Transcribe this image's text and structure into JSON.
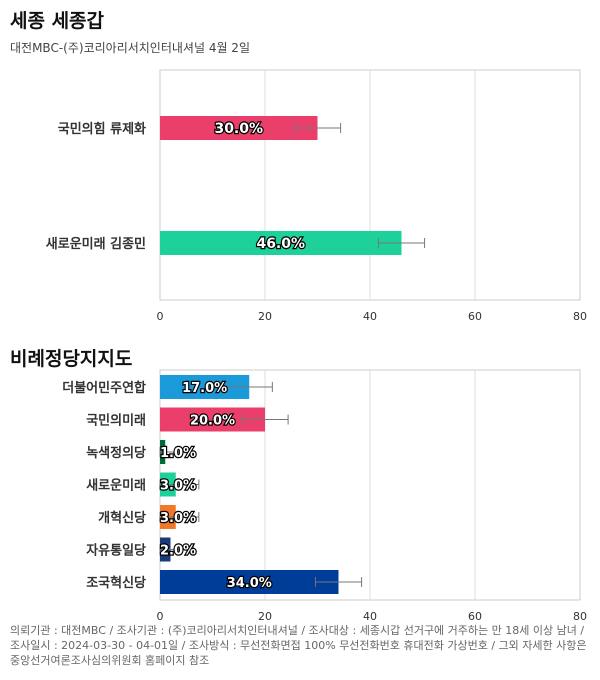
{
  "header": {
    "title": "세종 세종갑",
    "subtitle": "대전MBC-(주)코리아리서치인터내셔널 4월 2일"
  },
  "section2": {
    "title": "비례정당지지도"
  },
  "chart_data": [
    {
      "type": "bar",
      "orientation": "horizontal",
      "categories": [
        "국민의힘 류제화",
        "새로운미래 김종민"
      ],
      "values": [
        30.0,
        46.0
      ],
      "value_labels": [
        "30.0%",
        "46.0%"
      ],
      "colors": [
        "#ea3f6b",
        "#1ed19b"
      ],
      "error_margin": 4.4,
      "xlim": [
        0,
        80
      ],
      "xticks": [
        "0",
        "20",
        "40",
        "60",
        "80"
      ],
      "grid": true
    },
    {
      "type": "bar",
      "orientation": "horizontal",
      "categories": [
        "더불어민주연합",
        "국민의미래",
        "녹색정의당",
        "새로운미래",
        "개혁신당",
        "자유통일당",
        "조국혁신당"
      ],
      "values": [
        17.0,
        20.0,
        1.0,
        3.0,
        3.0,
        2.0,
        34.0
      ],
      "value_labels": [
        "17.0%",
        "20.0%",
        "1.0%",
        "3.0%",
        "3.0%",
        "2.0%",
        "34.0%"
      ],
      "colors": [
        "#1a9ad9",
        "#ea3f6b",
        "#006b3a",
        "#1ed19b",
        "#f07828",
        "#1a3a7a",
        "#003d99"
      ],
      "error_margin": 4.4,
      "xlim": [
        0,
        80
      ],
      "xticks": [
        "0",
        "20",
        "40",
        "60",
        "80"
      ],
      "grid": true
    }
  ],
  "footer": {
    "text": "의뢰기관 : 대전MBC / 조사기관 : (주)코리아리서치인터내셔널 / 조사대상 : 세종시갑 선거구에 거주하는 만 18세 이상 남녀 / 조사일시 : 2024-03-30 - 04-01일 / 조사방식 : 무선전화면접 100% 무선전화번호 휴대전화 가상번호 / 그외 자세한 사항은 중앙선거여론조사심의위원회 홈페이지 참조"
  }
}
